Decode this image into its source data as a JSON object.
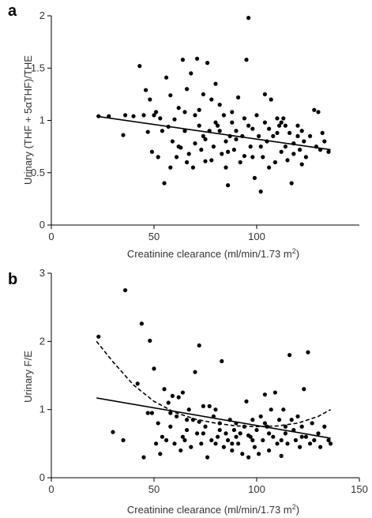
{
  "chart_data": [
    {
      "panel": "a",
      "type": "scatter",
      "title": "",
      "xlabel": "Creatinine clearance (ml/min/1.73 m",
      "xlabel_sup": "2",
      "xlabel_end": ")",
      "ylabel": "Urinary (THF + 5αTHF)/THE",
      "xlim": [
        0,
        150
      ],
      "ylim": [
        0,
        2
      ],
      "x_ticks": [
        0,
        50,
        100
      ],
      "y_ticks": [
        0,
        0.5,
        1,
        1.5,
        2
      ],
      "x_tick_labels": [
        "0",
        "50",
        "100"
      ],
      "y_tick_labels": [
        "0",
        "0.5",
        "1",
        "1.5",
        "2"
      ],
      "grid": false,
      "points": [
        [
          23,
          1.04
        ],
        [
          28,
          1.04
        ],
        [
          35,
          0.86
        ],
        [
          36,
          1.05
        ],
        [
          40,
          1.04
        ],
        [
          43,
          1.52
        ],
        [
          45,
          1.05
        ],
        [
          46,
          1.29
        ],
        [
          47,
          0.89
        ],
        [
          48,
          1.2
        ],
        [
          49,
          0.7
        ],
        [
          50,
          1.05
        ],
        [
          51,
          1.08
        ],
        [
          52,
          0.65
        ],
        [
          53,
          1.02
        ],
        [
          55,
          0.4
        ],
        [
          56,
          1.41
        ],
        [
          57,
          0.94
        ],
        [
          58,
          1.24
        ],
        [
          59,
          0.8
        ],
        [
          60,
          1.01
        ],
        [
          61,
          0.65
        ],
        [
          62,
          1.12
        ],
        [
          63,
          0.74
        ],
        [
          64,
          1.58
        ],
        [
          65,
          0.9
        ],
        [
          66,
          1.3
        ],
        [
          67,
          0.68
        ],
        [
          68,
          1.45
        ],
        [
          69,
          0.55
        ],
        [
          70,
          1.05
        ],
        [
          71,
          1.59
        ],
        [
          72,
          0.95
        ],
        [
          73,
          0.72
        ],
        [
          74,
          1.25
        ],
        [
          75,
          0.61
        ],
        [
          76,
          1.55
        ],
        [
          77,
          0.9
        ],
        [
          78,
          1.2
        ],
        [
          79,
          0.75
        ],
        [
          80,
          1.35
        ],
        [
          81,
          0.95
        ],
        [
          82,
          1.15
        ],
        [
          83,
          0.68
        ],
        [
          84,
          1.05
        ],
        [
          85,
          0.55
        ],
        [
          86,
          0.38
        ],
        [
          87,
          0.85
        ],
        [
          88,
          1.08
        ],
        [
          89,
          0.72
        ],
        [
          90,
          0.9
        ],
        [
          91,
          1.22
        ],
        [
          92,
          0.6
        ],
        [
          93,
          0.85
        ],
        [
          94,
          1.02
        ],
        [
          95,
          1.58
        ],
        [
          96,
          1.98
        ],
        [
          97,
          0.75
        ],
        [
          98,
          0.65
        ],
        [
          99,
          0.45
        ],
        [
          100,
          1.05
        ],
        [
          101,
          0.85
        ],
        [
          102,
          0.32
        ],
        [
          103,
          0.65
        ],
        [
          104,
          1.25
        ],
        [
          105,
          0.8
        ],
        [
          106,
          0.92
        ],
        [
          107,
          1.2
        ],
        [
          108,
          0.85
        ],
        [
          109,
          0.6
        ],
        [
          110,
          1.02
        ],
        [
          111,
          0.95
        ],
        [
          112,
          0.7
        ],
        [
          113,
          1.02
        ],
        [
          114,
          0.75
        ],
        [
          115,
          0.62
        ],
        [
          116,
          0.88
        ],
        [
          117,
          0.4
        ],
        [
          118,
          0.78
        ],
        [
          120,
          0.95
        ],
        [
          121,
          0.72
        ],
        [
          122,
          0.9
        ],
        [
          123,
          0.8
        ],
        [
          124,
          0.65
        ],
        [
          126,
          0.85
        ],
        [
          128,
          1.1
        ],
        [
          129,
          0.75
        ],
        [
          130,
          1.08
        ],
        [
          131,
          0.72
        ],
        [
          132,
          0.88
        ],
        [
          133,
          0.8
        ],
        [
          135,
          0.7
        ],
        [
          54,
          0.9
        ],
        [
          58,
          0.55
        ],
        [
          62,
          0.75
        ],
        [
          66,
          0.6
        ],
        [
          70,
          0.78
        ],
        [
          74,
          0.85
        ],
        [
          78,
          0.62
        ],
        [
          82,
          0.9
        ],
        [
          86,
          0.7
        ],
        [
          90,
          0.82
        ],
        [
          94,
          0.66
        ],
        [
          98,
          0.92
        ],
        [
          102,
          0.75
        ],
        [
          106,
          0.55
        ],
        [
          110,
          0.88
        ],
        [
          114,
          0.95
        ],
        [
          118,
          0.68
        ],
        [
          122,
          0.58
        ],
        [
          65,
          1.08
        ],
        [
          72,
          1.1
        ],
        [
          80,
          0.98
        ],
        [
          88,
          0.98
        ],
        [
          96,
          0.95
        ],
        [
          104,
          0.98
        ],
        [
          112,
          0.98
        ],
        [
          120,
          0.85
        ],
        [
          75,
          0.82
        ],
        [
          85,
          0.8
        ]
      ],
      "fit_line": {
        "style": "solid",
        "x": [
          22,
          136
        ],
        "y": [
          1.04,
          0.72
        ]
      }
    },
    {
      "panel": "b",
      "type": "scatter",
      "title": "",
      "xlabel": "Creatinine clearance (ml/min/1.73 m",
      "xlabel_sup": "2",
      "xlabel_end": ")",
      "ylabel": "Urinary F/E",
      "xlim": [
        0,
        150
      ],
      "ylim": [
        0,
        3
      ],
      "x_ticks": [
        0,
        50,
        100,
        150
      ],
      "y_ticks": [
        0,
        1,
        2,
        3
      ],
      "x_tick_labels": [
        "0",
        "50",
        "100",
        "150"
      ],
      "y_tick_labels": [
        "0",
        "1",
        "2",
        "3"
      ],
      "grid": false,
      "points": [
        [
          23,
          2.07
        ],
        [
          30,
          0.67
        ],
        [
          35,
          0.55
        ],
        [
          36,
          2.75
        ],
        [
          42,
          1.38
        ],
        [
          44,
          2.26
        ],
        [
          45,
          0.3
        ],
        [
          47,
          0.95
        ],
        [
          48,
          2.01
        ],
        [
          49,
          0.95
        ],
        [
          50,
          1.6
        ],
        [
          51,
          0.5
        ],
        [
          52,
          0.8
        ],
        [
          53,
          0.35
        ],
        [
          54,
          0.6
        ],
        [
          55,
          1.3
        ],
        [
          56,
          0.55
        ],
        [
          57,
          1.1
        ],
        [
          58,
          0.75
        ],
        [
          59,
          1.2
        ],
        [
          60,
          0.5
        ],
        [
          61,
          0.9
        ],
        [
          62,
          1.18
        ],
        [
          63,
          0.4
        ],
        [
          64,
          1.25
        ],
        [
          65,
          0.55
        ],
        [
          66,
          0.7
        ],
        [
          67,
          1.0
        ],
        [
          68,
          0.45
        ],
        [
          69,
          0.85
        ],
        [
          70,
          1.55
        ],
        [
          71,
          0.65
        ],
        [
          72,
          1.94
        ],
        [
          73,
          0.5
        ],
        [
          74,
          1.05
        ],
        [
          75,
          0.75
        ],
        [
          76,
          0.3
        ],
        [
          77,
          1.05
        ],
        [
          78,
          0.55
        ],
        [
          79,
          0.9
        ],
        [
          80,
          1.0
        ],
        [
          81,
          0.6
        ],
        [
          82,
          0.8
        ],
        [
          83,
          1.71
        ],
        [
          84,
          0.45
        ],
        [
          85,
          0.65
        ],
        [
          86,
          0.55
        ],
        [
          87,
          0.85
        ],
        [
          88,
          0.4
        ],
        [
          89,
          0.7
        ],
        [
          90,
          0.8
        ],
        [
          91,
          0.5
        ],
        [
          92,
          0.65
        ],
        [
          93,
          0.35
        ],
        [
          94,
          0.75
        ],
        [
          95,
          1.12
        ],
        [
          96,
          0.3
        ],
        [
          97,
          0.6
        ],
        [
          98,
          0.85
        ],
        [
          99,
          0.45
        ],
        [
          100,
          0.7
        ],
        [
          101,
          0.35
        ],
        [
          102,
          0.9
        ],
        [
          103,
          0.55
        ],
        [
          104,
          1.22
        ],
        [
          105,
          0.75
        ],
        [
          106,
          0.4
        ],
        [
          107,
          1.0
        ],
        [
          108,
          0.6
        ],
        [
          109,
          1.25
        ],
        [
          110,
          0.5
        ],
        [
          111,
          0.85
        ],
        [
          112,
          0.32
        ],
        [
          113,
          1.0
        ],
        [
          114,
          0.65
        ],
        [
          115,
          0.5
        ],
        [
          116,
          1.8
        ],
        [
          117,
          0.85
        ],
        [
          118,
          0.7
        ],
        [
          119,
          0.55
        ],
        [
          120,
          0.9
        ],
        [
          121,
          0.45
        ],
        [
          122,
          0.75
        ],
        [
          123,
          1.3
        ],
        [
          124,
          0.6
        ],
        [
          125,
          1.84
        ],
        [
          126,
          0.5
        ],
        [
          127,
          0.8
        ],
        [
          128,
          0.55
        ],
        [
          130,
          0.65
        ],
        [
          131,
          0.45
        ],
        [
          133,
          0.75
        ],
        [
          135,
          0.55
        ],
        [
          136,
          0.5
        ],
        [
          58,
          0.95
        ],
        [
          66,
          0.85
        ],
        [
          74,
          0.65
        ],
        [
          82,
          0.7
        ],
        [
          90,
          0.6
        ],
        [
          98,
          0.55
        ],
        [
          106,
          0.65
        ],
        [
          114,
          0.75
        ],
        [
          122,
          0.6
        ],
        [
          64,
          0.6
        ],
        [
          72,
          0.82
        ],
        [
          80,
          0.5
        ],
        [
          88,
          0.5
        ],
        [
          96,
          0.62
        ],
        [
          104,
          0.8
        ],
        [
          112,
          0.55
        ]
      ],
      "fit_line": {
        "style": "solid",
        "x": [
          22,
          136
        ],
        "y": [
          1.17,
          0.58
        ]
      },
      "fit_curve": {
        "style": "dashed",
        "x": [
          22,
          30,
          40,
          50,
          60,
          70,
          80,
          90,
          100,
          110,
          120,
          130,
          136
        ],
        "y": [
          2.0,
          1.7,
          1.36,
          1.12,
          0.96,
          0.86,
          0.8,
          0.76,
          0.75,
          0.76,
          0.8,
          0.9,
          1.0
        ]
      }
    }
  ]
}
